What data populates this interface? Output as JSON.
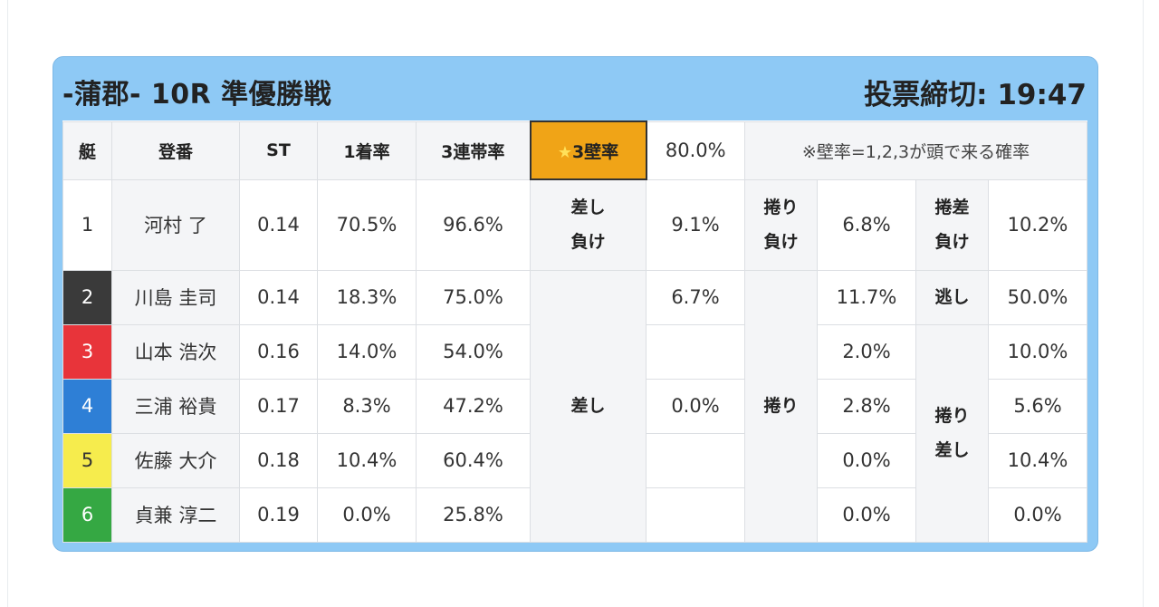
{
  "race": {
    "title": "-蒲郡- 10R 準優勝戦",
    "deadline": "投票締切: 19:47"
  },
  "header": {
    "boat": "艇",
    "reg": "登番",
    "st": "ST",
    "win_rate": "1着率",
    "top3_rate": "3連帯率",
    "wall_star": "★",
    "wall_label": "3壁率",
    "wall_value": "80.0%",
    "note": "※壁率=1,2,3が頭で来る確率"
  },
  "labels": {
    "sashi_make_1": "差し",
    "sashi_make_2": "負け",
    "makuri_make_1": "捲り",
    "makuri_make_2": "負け",
    "makurisashi_make_1": "捲差",
    "makurisashi_make_2": "負け",
    "nige": "逃し",
    "sashi": "差し",
    "makuri": "捲り",
    "makurisashi_1": "捲り",
    "makurisashi_2": "差し"
  },
  "rows": [
    {
      "waku": "1",
      "name": "河村 了",
      "st": "0.14",
      "win": "70.5%",
      "top3": "96.6%"
    },
    {
      "waku": "2",
      "name": "川島 圭司",
      "st": "0.14",
      "win": "18.3%",
      "top3": "75.0%"
    },
    {
      "waku": "3",
      "name": "山本 浩次",
      "st": "0.16",
      "win": "14.0%",
      "top3": "54.0%"
    },
    {
      "waku": "4",
      "name": "三浦 裕貴",
      "st": "0.17",
      "win": "8.3%",
      "top3": "47.2%"
    },
    {
      "waku": "5",
      "name": "佐藤 大介",
      "st": "0.18",
      "win": "10.4%",
      "top3": "60.4%"
    },
    {
      "waku": "6",
      "name": "貞兼 淳二",
      "st": "0.19",
      "win": "0.0%",
      "top3": "25.8%"
    }
  ],
  "values": {
    "sashi_make": "9.1%",
    "makuri_make": "6.8%",
    "makurisashi_make": "10.2%",
    "sashi_r2": "6.7%",
    "sashi_r4": "0.0%",
    "makuri_r2": "11.7%",
    "makuri_r3": "2.0%",
    "makuri_r4": "2.8%",
    "makuri_r5": "0.0%",
    "makuri_r6": "0.0%",
    "nige": "50.0%",
    "ms_r3": "10.0%",
    "ms_r4": "5.6%",
    "ms_r5": "10.4%",
    "ms_r6": "0.0%"
  }
}
